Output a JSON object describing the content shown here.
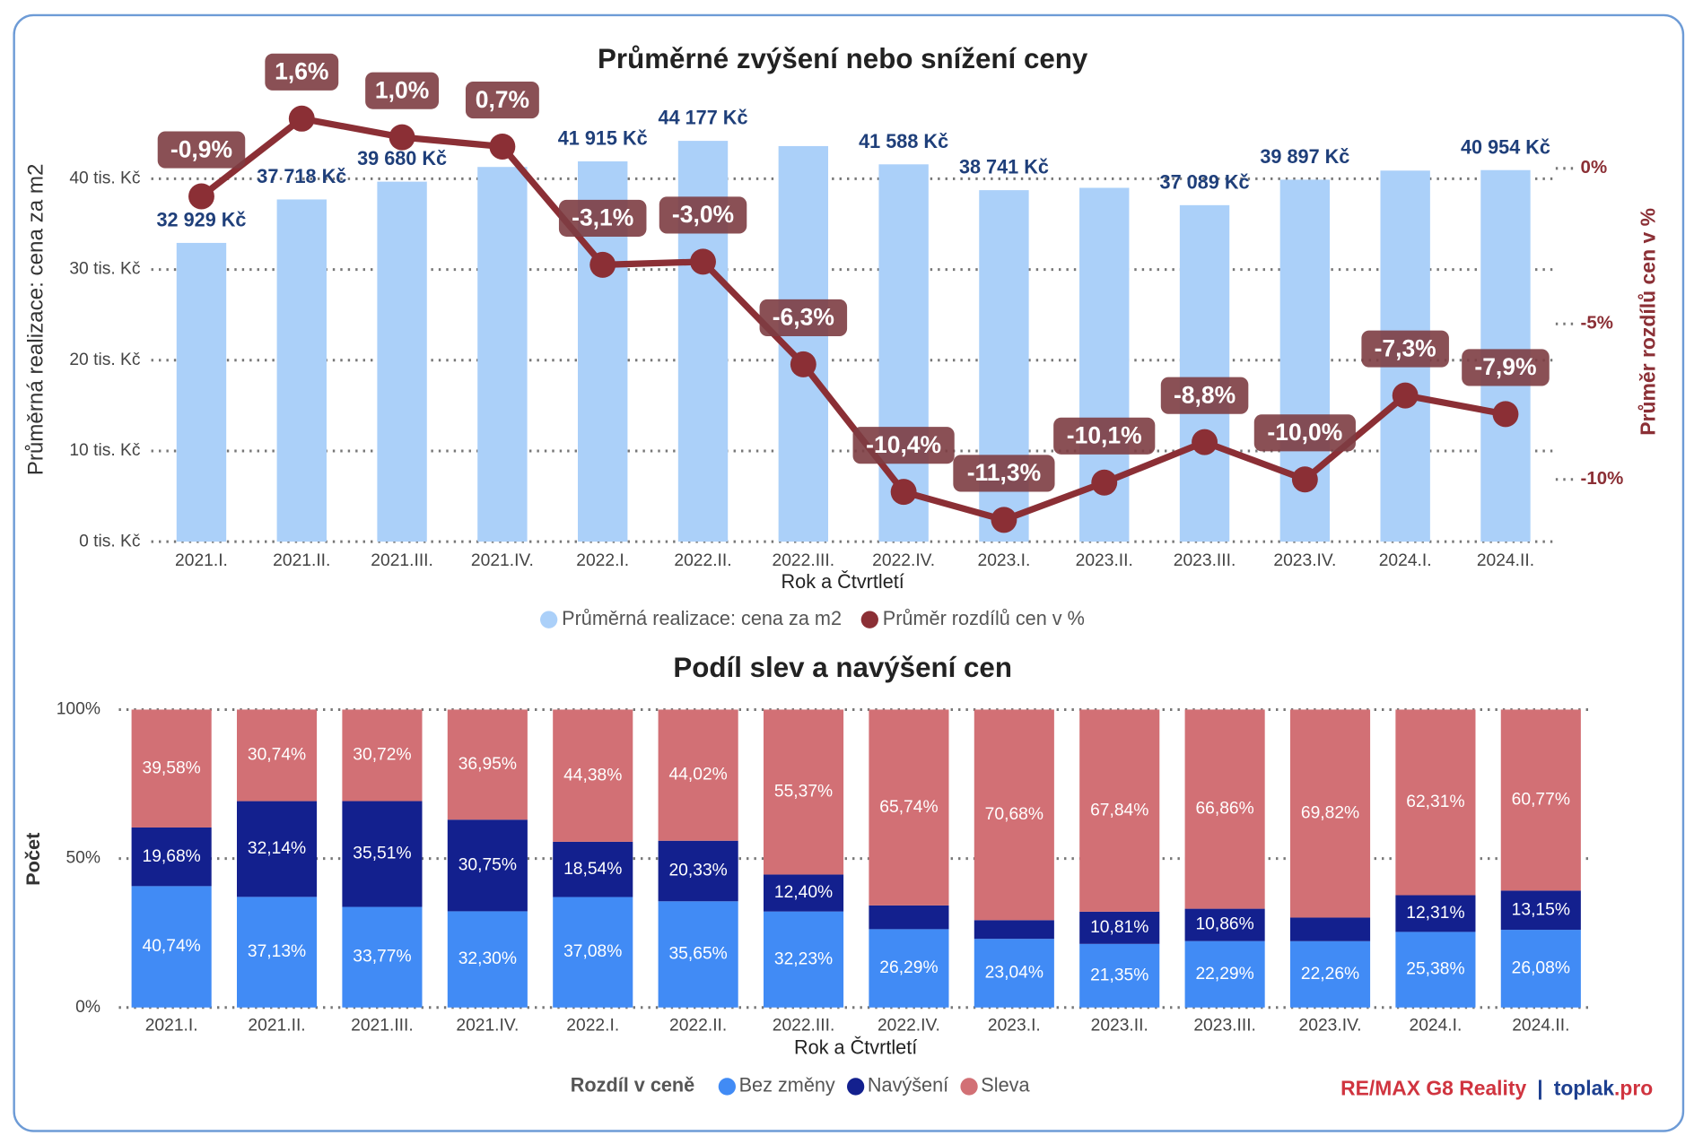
{
  "chart_data": [
    {
      "type": "bar_line",
      "title": "Průměrné zvýšení nebo snížení ceny",
      "x_label": "Rok a Čtvrtletí",
      "y_label": "Průměrná realizace: cena za m2",
      "y2_label": "Průměr rozdílů cen v %",
      "categories": [
        "2021.I.",
        "2021.II.",
        "2021.III.",
        "2021.IV.",
        "2022.I.",
        "2022.II.",
        "2022.III.",
        "2022.IV.",
        "2023.I.",
        "2023.II.",
        "2023.III.",
        "2023.IV.",
        "2024.I.",
        "2024.II."
      ],
      "series": [
        {
          "name": "Průměrná realizace: cena za m2",
          "color": "#abd0f9",
          "type": "bar",
          "values": [
            32929,
            37718,
            39680,
            41300,
            41915,
            44177,
            43600,
            41588,
            38741,
            39000,
            37089,
            39897,
            40900,
            40954
          ],
          "value_labels": [
            "32 929 Kč",
            "37 718 Kč",
            "39 680 Kč",
            null,
            "41 915 Kč",
            "44 177 Kč",
            null,
            "41 588 Kč",
            "38 741 Kč",
            null,
            "37 089 Kč",
            "39 897 Kč",
            null,
            "40 954 Kč"
          ]
        },
        {
          "name": "Průměr rozdílů cen v %",
          "color": "#8b2f35",
          "type": "line",
          "axis": "y2",
          "values": [
            -0.9,
            1.6,
            1.0,
            0.7,
            -3.1,
            -3.0,
            -6.3,
            -10.4,
            -11.3,
            -10.1,
            -8.8,
            -10.0,
            -7.3,
            -7.9
          ],
          "value_labels": [
            "-0,9%",
            "1,6%",
            "1,0%",
            "0,7%",
            "-3,1%",
            "-3,0%",
            "-6,3%",
            "-10,4%",
            "-11,3%",
            "-10,1%",
            "-8,8%",
            "-10,0%",
            "-7,3%",
            "-7,9%"
          ]
        }
      ],
      "ylim": [
        0,
        48000
      ],
      "yticks": [
        {
          "value": 0,
          "label": "0 tis. Kč"
        },
        {
          "value": 10000,
          "label": "10 tis. Kč"
        },
        {
          "value": 20000,
          "label": "20 tis. Kč"
        },
        {
          "value": 30000,
          "label": "30 tis. Kč"
        },
        {
          "value": 40000,
          "label": "40 tis. Kč"
        }
      ],
      "y2lim": [
        -12,
        2
      ],
      "y2ticks": [
        {
          "value": 0,
          "label": "0%"
        },
        {
          "value": -5,
          "label": "-5%"
        },
        {
          "value": -10,
          "label": "-10%"
        }
      ],
      "grid": true
    },
    {
      "type": "stacked_bar",
      "title": "Podíl slev a navýšení cen",
      "x_label": "Rok a Čtvrtletí",
      "y_label": "Počet",
      "legend_title": "Rozdíl v ceně",
      "categories": [
        "2021.I.",
        "2021.II.",
        "2021.III.",
        "2021.IV.",
        "2022.I.",
        "2022.II.",
        "2022.III.",
        "2022.IV.",
        "2023.I.",
        "2023.II.",
        "2023.III.",
        "2023.IV.",
        "2024.I.",
        "2024.II."
      ],
      "series": [
        {
          "name": "Bez změny",
          "color": "#418bf5",
          "values": [
            40.74,
            37.13,
            33.77,
            32.3,
            37.08,
            35.65,
            32.23,
            26.29,
            23.04,
            21.35,
            22.29,
            22.26,
            25.38,
            26.08
          ],
          "value_labels": [
            "40,74%",
            "37,13%",
            "33,77%",
            "32,30%",
            "37,08%",
            "35,65%",
            "32,23%",
            "26,29%",
            "23,04%",
            "21,35%",
            "22,29%",
            "22,26%",
            "25,38%",
            "26,08%"
          ]
        },
        {
          "name": "Navýšení",
          "color": "#13208e",
          "values": [
            19.68,
            32.14,
            35.51,
            30.75,
            18.54,
            20.33,
            12.4,
            7.97,
            6.28,
            10.81,
            10.86,
            7.92,
            12.31,
            13.15
          ],
          "value_labels": [
            "19,68%",
            "32,14%",
            "35,51%",
            "30,75%",
            "18,54%",
            "20,33%",
            "12,40%",
            null,
            null,
            "10,81%",
            "10,86%",
            null,
            "12,31%",
            "13,15%"
          ]
        },
        {
          "name": "Sleva",
          "color": "#d27075",
          "values": [
            39.58,
            30.74,
            30.72,
            36.95,
            44.38,
            44.02,
            55.37,
            65.74,
            70.68,
            67.84,
            66.86,
            69.82,
            62.31,
            60.77
          ],
          "value_labels": [
            "39,58%",
            "30,74%",
            "30,72%",
            "36,95%",
            "44,38%",
            "44,02%",
            "55,37%",
            "65,74%",
            "70,68%",
            "67,84%",
            "66,86%",
            "69,82%",
            "62,31%",
            "60,77%"
          ]
        }
      ],
      "ylim": [
        0,
        100
      ],
      "yticks": [
        {
          "value": 0,
          "label": "0%"
        },
        {
          "value": 50,
          "label": "50%"
        },
        {
          "value": 100,
          "label": "100%"
        }
      ],
      "grid": true
    }
  ],
  "footer": {
    "brand": "RE/MAX G8 Reality",
    "separator": "|",
    "site": "toplak",
    "site_suffix": ".pro"
  }
}
